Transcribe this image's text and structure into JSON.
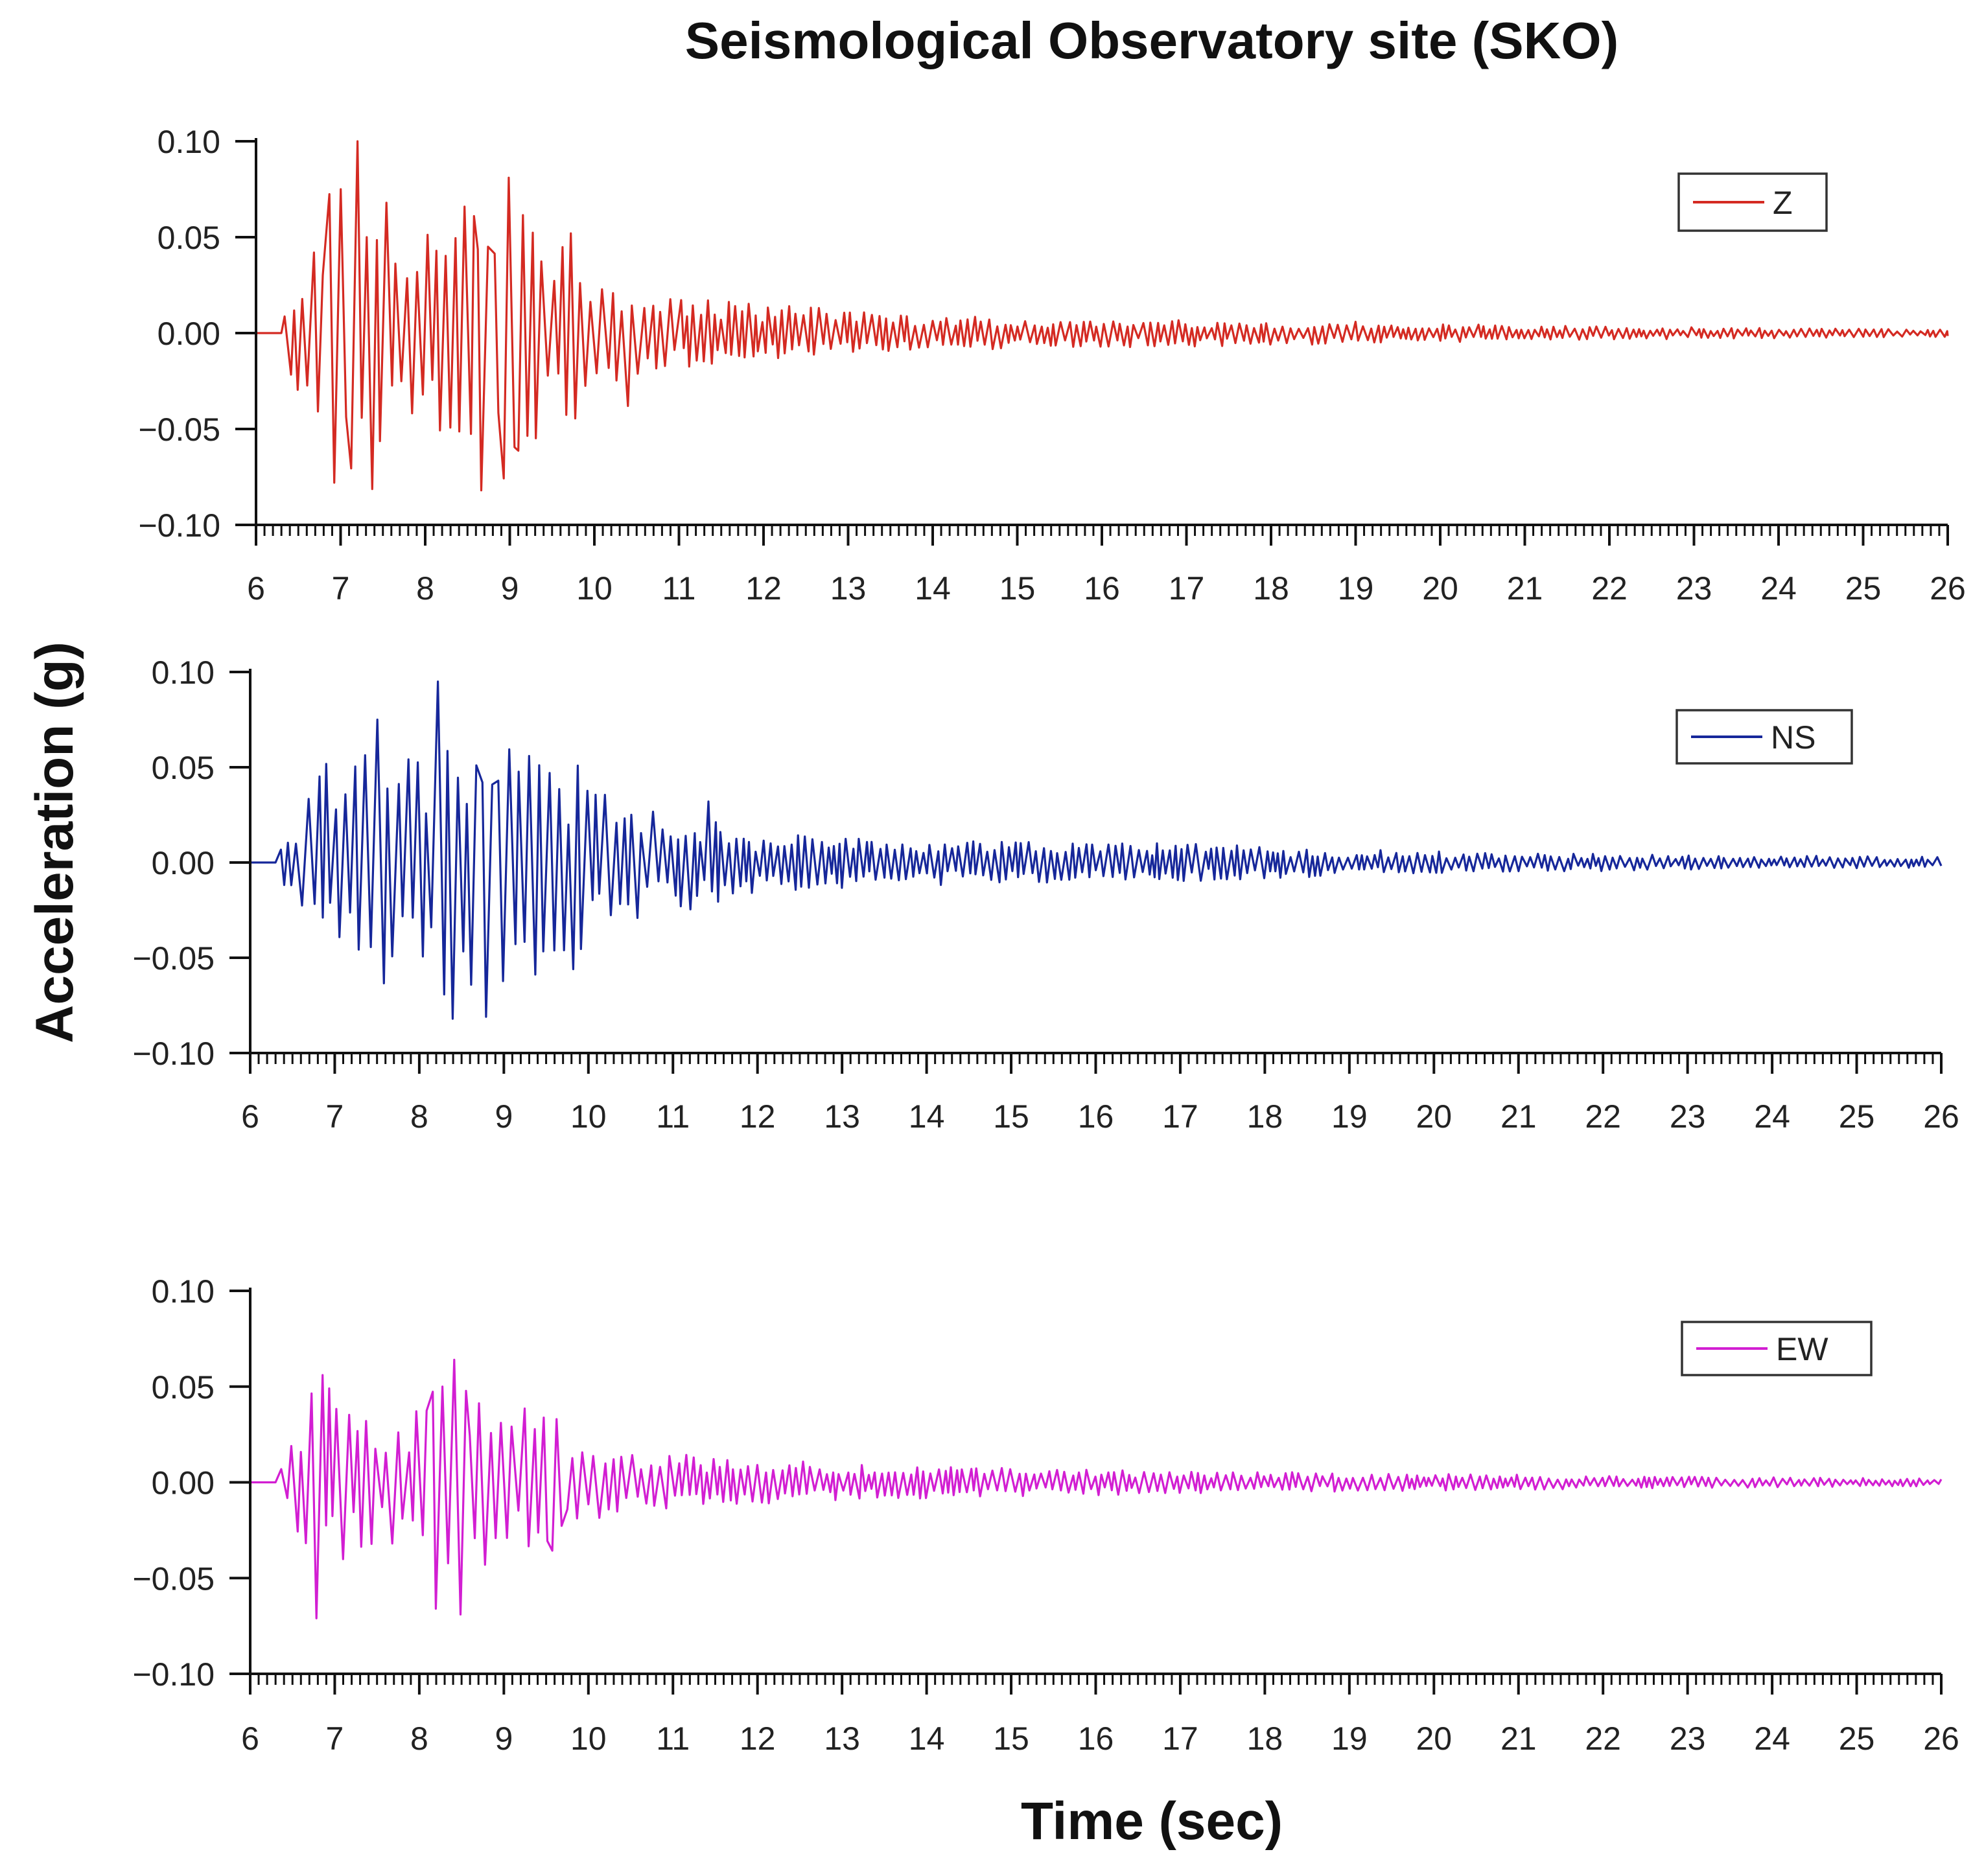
{
  "chart_data": {
    "type": "line",
    "title": "Seismological Observatory site (SKO)",
    "ylabel": "Acceleration (g)",
    "xlabel": "Time (sec)",
    "xlim": [
      6,
      26
    ],
    "ylim": [
      -0.1,
      0.1
    ],
    "x_ticks": [
      "6",
      "7",
      "8",
      "9",
      "10",
      "11",
      "12",
      "13",
      "14",
      "15",
      "16",
      "17",
      "18",
      "19",
      "20",
      "21",
      "22",
      "23",
      "24",
      "25",
      "26"
    ],
    "y_ticks": [
      "0.10",
      "0.05",
      "0.00",
      "−0.05",
      "−0.10"
    ],
    "grid": false,
    "legend_position": "top-right",
    "panels": [
      {
        "name": "Z",
        "color": "#d42a22",
        "start_time": 6.3,
        "envelope": [
          [
            6.0,
            0.0
          ],
          [
            6.3,
            0.005
          ],
          [
            6.5,
            0.035
          ],
          [
            6.8,
            0.075
          ],
          [
            7.2,
            0.1
          ],
          [
            7.5,
            0.07
          ],
          [
            7.9,
            0.06
          ],
          [
            8.3,
            0.05
          ],
          [
            8.6,
            0.08
          ],
          [
            8.9,
            0.08
          ],
          [
            9.2,
            0.06
          ],
          [
            9.7,
            0.05
          ],
          [
            10.0,
            0.035
          ],
          [
            10.5,
            0.025
          ],
          [
            11.0,
            0.02
          ],
          [
            12.0,
            0.015
          ],
          [
            13.0,
            0.012
          ],
          [
            14.0,
            0.01
          ],
          [
            15.0,
            0.008
          ],
          [
            17.0,
            0.007
          ],
          [
            19.0,
            0.006
          ],
          [
            21.0,
            0.004
          ],
          [
            23.0,
            0.003
          ],
          [
            26.0,
            0.002
          ]
        ],
        "peaks": [
          {
            "t": 7.2,
            "a": 0.1
          },
          {
            "t": 8.7,
            "a": -0.082
          },
          {
            "t": 8.98,
            "a": 0.081
          },
          {
            "t": 6.92,
            "a": -0.078
          },
          {
            "t": 7.0,
            "a": 0.075
          },
          {
            "t": 9.7,
            "a": 0.052
          },
          {
            "t": 10.4,
            "a": -0.038
          }
        ]
      },
      {
        "name": "NS",
        "color": "#16279a",
        "start_time": 6.3,
        "envelope": [
          [
            6.0,
            0.0
          ],
          [
            6.3,
            0.005
          ],
          [
            6.6,
            0.03
          ],
          [
            7.0,
            0.06
          ],
          [
            7.5,
            0.065
          ],
          [
            8.0,
            0.06
          ],
          [
            8.3,
            0.09
          ],
          [
            8.6,
            0.075
          ],
          [
            9.0,
            0.065
          ],
          [
            9.4,
            0.06
          ],
          [
            9.7,
            0.06
          ],
          [
            10.0,
            0.045
          ],
          [
            10.5,
            0.03
          ],
          [
            11.0,
            0.025
          ],
          [
            11.5,
            0.025
          ],
          [
            12.0,
            0.015
          ],
          [
            14.0,
            0.012
          ],
          [
            17.0,
            0.01
          ],
          [
            19.0,
            0.007
          ],
          [
            21.0,
            0.005
          ],
          [
            23.0,
            0.004
          ],
          [
            26.0,
            0.003
          ]
        ],
        "peaks": [
          {
            "t": 8.25,
            "a": 0.095
          },
          {
            "t": 8.4,
            "a": -0.082
          },
          {
            "t": 8.8,
            "a": -0.081
          },
          {
            "t": 7.5,
            "a": 0.075
          },
          {
            "t": 9.8,
            "a": -0.056
          },
          {
            "t": 11.4,
            "a": 0.032
          }
        ]
      },
      {
        "name": "EW",
        "color": "#d21ed2",
        "start_time": 6.3,
        "envelope": [
          [
            6.0,
            0.0
          ],
          [
            6.3,
            0.005
          ],
          [
            6.5,
            0.025
          ],
          [
            6.8,
            0.06
          ],
          [
            7.1,
            0.04
          ],
          [
            7.6,
            0.03
          ],
          [
            8.0,
            0.04
          ],
          [
            8.3,
            0.06
          ],
          [
            8.5,
            0.065
          ],
          [
            8.8,
            0.045
          ],
          [
            9.2,
            0.04
          ],
          [
            9.7,
            0.035
          ],
          [
            10.0,
            0.02
          ],
          [
            11.0,
            0.015
          ],
          [
            13.0,
            0.01
          ],
          [
            15.0,
            0.008
          ],
          [
            17.0,
            0.006
          ],
          [
            19.0,
            0.005
          ],
          [
            21.0,
            0.004
          ],
          [
            23.0,
            0.003
          ],
          [
            26.0,
            0.002
          ]
        ],
        "peaks": [
          {
            "t": 6.78,
            "a": -0.071
          },
          {
            "t": 6.85,
            "a": 0.056
          },
          {
            "t": 8.4,
            "a": 0.064
          },
          {
            "t": 8.2,
            "a": -0.066
          },
          {
            "t": 8.5,
            "a": -0.069
          },
          {
            "t": 9.65,
            "a": 0.033
          }
        ]
      }
    ]
  }
}
